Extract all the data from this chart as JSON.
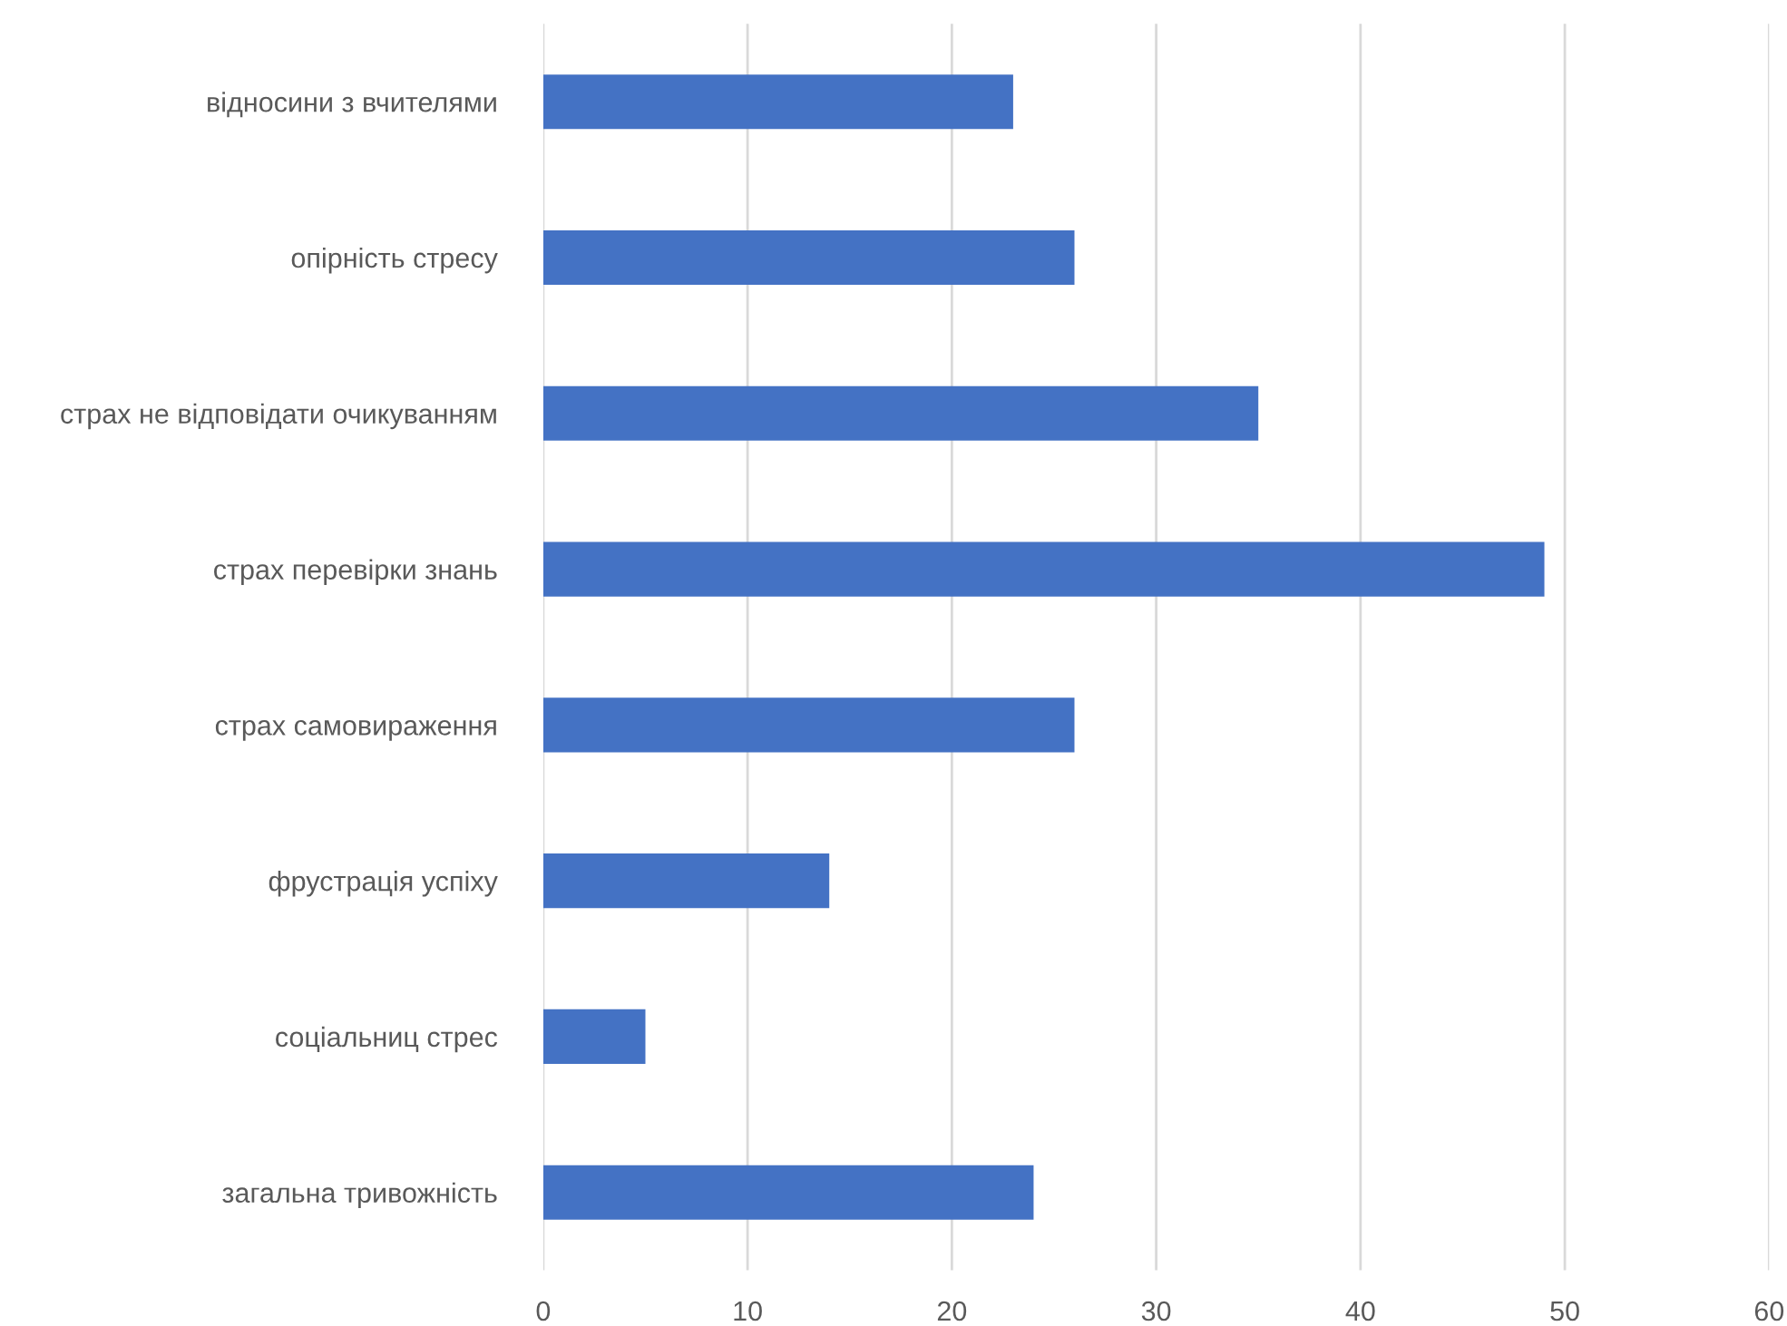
{
  "chart_data": {
    "type": "bar",
    "orientation": "horizontal",
    "categories": [
      "відносини з вчителями",
      "опірність стресу",
      "страх не відповідати очикуванням",
      "страх перевірки знань",
      "страх самовираження",
      "фрустрація успіху",
      "соціальниц стрес",
      "загальна тривожність"
    ],
    "values": [
      23,
      26,
      35,
      49,
      26,
      14,
      5,
      24
    ],
    "color": "#4472c4",
    "xlim": [
      0,
      60
    ],
    "xticks": [
      0,
      10,
      20,
      30,
      40,
      50,
      60
    ],
    "grid": "x"
  }
}
